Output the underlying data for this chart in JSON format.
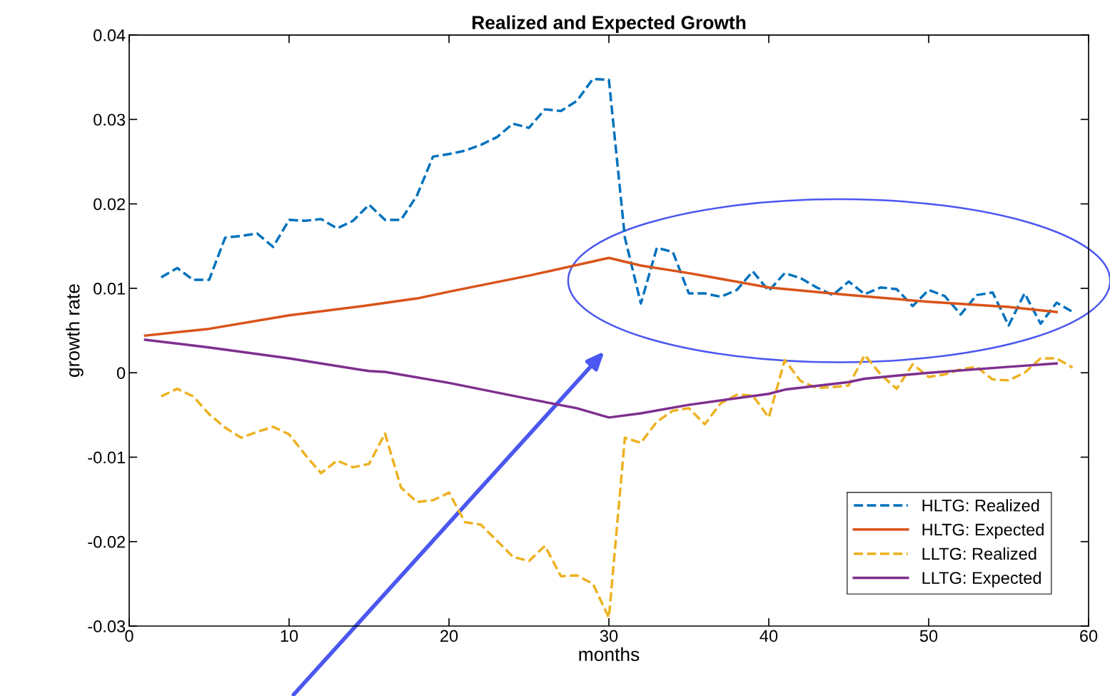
{
  "chart_data": {
    "type": "line",
    "title": "Realized and Expected Growth",
    "xlabel": "months",
    "ylabel": "growth rate",
    "xlim": [
      0,
      60
    ],
    "xticks": [
      0,
      10,
      20,
      30,
      40,
      50,
      60
    ],
    "ylim": [
      -0.03,
      0.04
    ],
    "yticks": [
      -0.03,
      -0.02,
      -0.01,
      0,
      0.01,
      0.02,
      0.03,
      0.04
    ],
    "grid": false,
    "legend": "bottom right",
    "marker": "none",
    "series": [
      {
        "name": "HLTG: Realized",
        "color": "#0072bd",
        "line_style": "dashed",
        "x": [
          2,
          3,
          4,
          5,
          6,
          7,
          8,
          9,
          10,
          11,
          12,
          13,
          14,
          15,
          16,
          17,
          18,
          19,
          20,
          21,
          22,
          23,
          24,
          25,
          26,
          27,
          28,
          29,
          30,
          31,
          32,
          33,
          34,
          35,
          36,
          37,
          38,
          39,
          40,
          41,
          42,
          43,
          44,
          45,
          46,
          47,
          48,
          49,
          50,
          51,
          52,
          53,
          54,
          55,
          56,
          57,
          58,
          59
        ],
        "values": [
          0.0113,
          0.0124,
          0.011,
          0.011,
          0.016,
          0.0162,
          0.0165,
          0.0149,
          0.0181,
          0.018,
          0.0182,
          0.0171,
          0.018,
          0.0199,
          0.0181,
          0.0181,
          0.021,
          0.0256,
          0.0259,
          0.0263,
          0.027,
          0.0279,
          0.0295,
          0.029,
          0.0312,
          0.031,
          0.0322,
          0.0348,
          0.0347,
          0.016,
          0.0082,
          0.0148,
          0.0143,
          0.0094,
          0.0094,
          0.009,
          0.0098,
          0.012,
          0.0097,
          0.0118,
          0.0112,
          0.0101,
          0.0092,
          0.0108,
          0.0093,
          0.0101,
          0.0099,
          0.0079,
          0.0098,
          0.0091,
          0.0069,
          0.0092,
          0.0095,
          0.0056,
          0.0094,
          0.0058,
          0.0083,
          0.0072
        ]
      },
      {
        "name": "HLTG: Expected",
        "color": "#d95319",
        "line_style": "solid",
        "x": [
          1,
          5,
          10,
          15,
          18,
          20,
          25,
          30,
          32,
          35,
          40,
          45,
          50,
          55,
          58
        ],
        "values": [
          0.0044,
          0.0052,
          0.0068,
          0.008,
          0.0088,
          0.0096,
          0.0115,
          0.0136,
          0.0127,
          0.0118,
          0.0101,
          0.0092,
          0.0084,
          0.0078,
          0.0072
        ]
      },
      {
        "name": "LLTG: Realized",
        "color": "#edb120",
        "line_style": "dashed",
        "x": [
          2,
          3,
          4,
          5,
          6,
          7,
          8,
          9,
          10,
          11,
          12,
          13,
          14,
          15,
          16,
          17,
          18,
          19,
          20,
          21,
          22,
          23,
          24,
          25,
          26,
          27,
          28,
          29,
          30,
          31,
          32,
          33,
          34,
          35,
          36,
          37,
          38,
          39,
          40,
          41,
          42,
          43,
          44,
          45,
          46,
          47,
          48,
          49,
          50,
          51,
          52,
          53,
          54,
          55,
          56,
          57,
          58,
          59
        ],
        "values": [
          -0.0028,
          -0.0019,
          -0.0028,
          -0.0049,
          -0.0065,
          -0.0077,
          -0.007,
          -0.0064,
          -0.0073,
          -0.0097,
          -0.0119,
          -0.0104,
          -0.0112,
          -0.0108,
          -0.0072,
          -0.0136,
          -0.0153,
          -0.0151,
          -0.0142,
          -0.0177,
          -0.018,
          -0.0199,
          -0.0218,
          -0.0223,
          -0.0205,
          -0.0241,
          -0.024,
          -0.025,
          -0.029,
          -0.0077,
          -0.0083,
          -0.0058,
          -0.0045,
          -0.0042,
          -0.0061,
          -0.0036,
          -0.0026,
          -0.0027,
          -0.0053,
          0.0015,
          -0.001,
          -0.0018,
          -0.0017,
          -0.0015,
          0.0021,
          -0.0002,
          -0.0019,
          0.001,
          -0.0005,
          -0.0002,
          0.0004,
          0.0007,
          -0.0008,
          -0.0009,
          0.0,
          0.0017,
          0.0017,
          0.0006
        ]
      },
      {
        "name": "LLTG: Expected",
        "color": "#7e2f8e",
        "line_style": "solid",
        "x": [
          1,
          5,
          10,
          15,
          16,
          20,
          25,
          28,
          30,
          32,
          35,
          40,
          41,
          45,
          46,
          50,
          55,
          58
        ],
        "values": [
          0.0039,
          0.003,
          0.0017,
          0.0002,
          0.0001,
          -0.0012,
          -0.0031,
          -0.0042,
          -0.0053,
          -0.0048,
          -0.0038,
          -0.0025,
          -0.002,
          -0.0011,
          -0.0007,
          0.0,
          0.0007,
          0.0011
        ]
      }
    ]
  }
}
